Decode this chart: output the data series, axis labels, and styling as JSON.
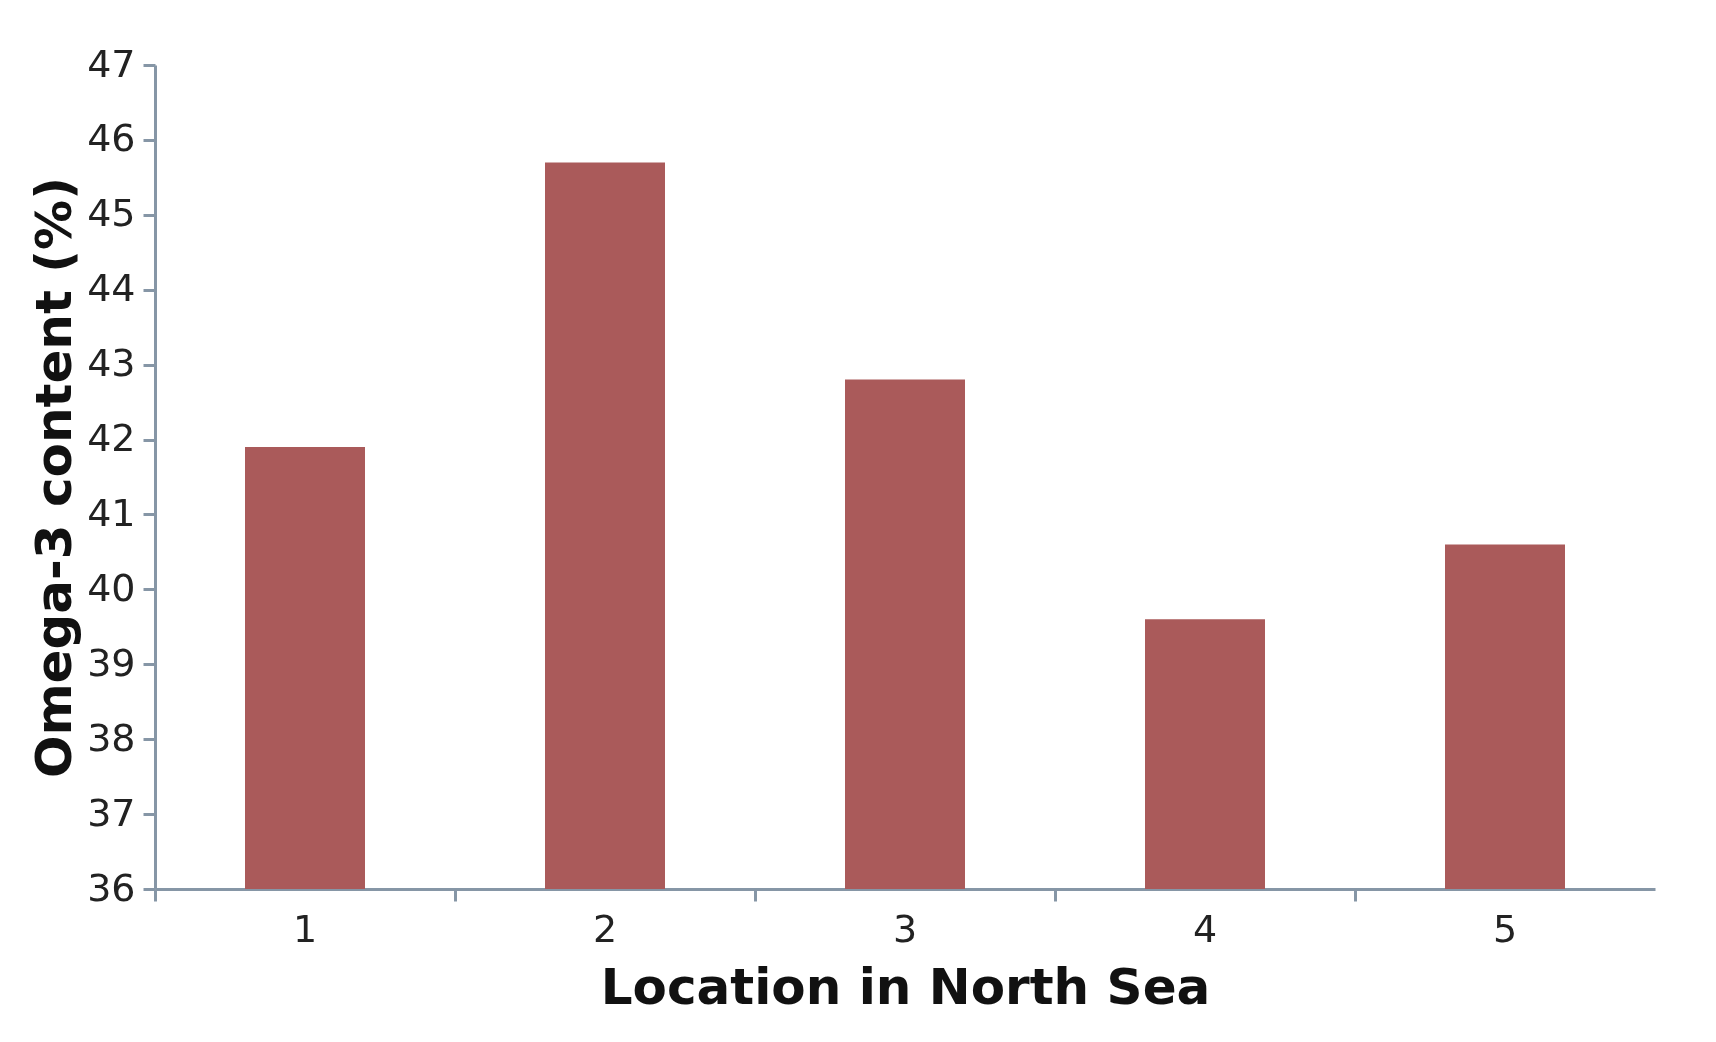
{
  "chart_data": {
    "type": "bar",
    "xlabel": "Location in North Sea",
    "ylabel": "Omega-3 content (%)",
    "categories": [
      "1",
      "2",
      "3",
      "4",
      "5"
    ],
    "values": [
      41.9,
      45.7,
      42.8,
      39.6,
      40.6
    ],
    "color": "#aa5a5a",
    "ylim": [
      36,
      47
    ],
    "yticks": [
      36,
      37,
      38,
      39,
      40,
      41,
      42,
      43,
      44,
      45,
      46,
      47
    ],
    "grid": false
  }
}
